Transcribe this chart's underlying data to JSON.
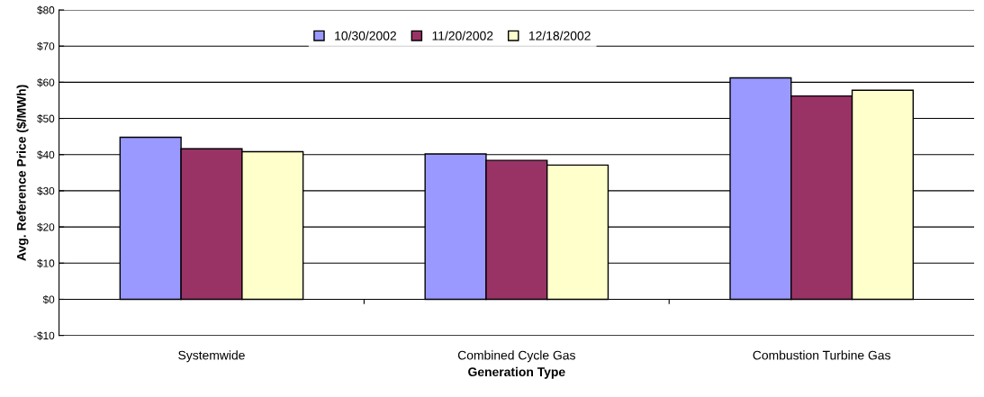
{
  "chart_data": {
    "type": "bar",
    "xlabel": "Generation Type",
    "ylabel": "Avg. Reference Price ($/MWh)",
    "categories": [
      "Systemwide",
      "Combined Cycle Gas",
      "Combustion Turbine Gas"
    ],
    "series": [
      {
        "name": "10/30/2002",
        "color": "#9999ff",
        "values": [
          44.8,
          40.2,
          61.2
        ]
      },
      {
        "name": "11/20/2002",
        "color": "#993366",
        "values": [
          41.6,
          38.4,
          56.2
        ]
      },
      {
        "name": "12/18/2002",
        "color": "#ffffcc",
        "values": [
          40.8,
          37.1,
          57.8
        ]
      }
    ],
    "ylim": [
      -10,
      80
    ],
    "yticks": [
      {
        "value": -10,
        "label": "-$10"
      },
      {
        "value": 0,
        "label": "$0"
      },
      {
        "value": 10,
        "label": "$10"
      },
      {
        "value": 20,
        "label": "$20"
      },
      {
        "value": 30,
        "label": "$30"
      },
      {
        "value": 40,
        "label": "$40"
      },
      {
        "value": 50,
        "label": "$50"
      },
      {
        "value": 60,
        "label": "$60"
      },
      {
        "value": 70,
        "label": "$70"
      },
      {
        "value": 80,
        "label": "$80"
      }
    ],
    "grid": "y",
    "legend": "top"
  }
}
